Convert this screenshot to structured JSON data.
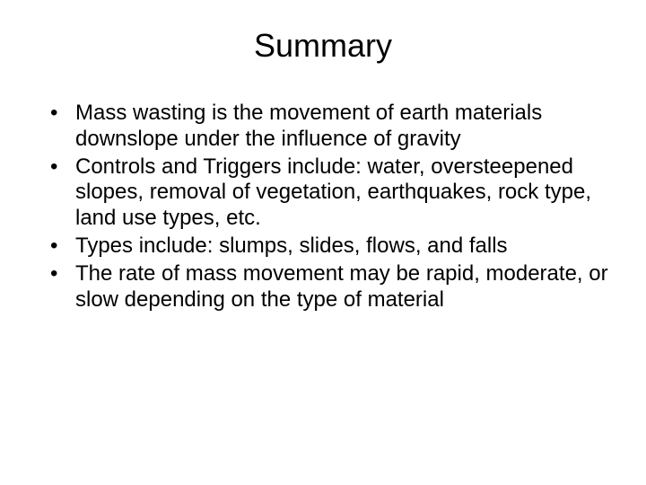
{
  "title": "Summary",
  "bullets": [
    "Mass wasting is the movement of earth materials downslope under the influence of gravity",
    "Controls and Triggers include: water, oversteepened slopes, removal of vegetation, earthquakes, rock type, land use types, etc.",
    "Types include: slumps, slides, flows, and falls",
    "The rate of mass movement may be rapid, moderate, or slow depending on the type of material"
  ],
  "colors": {
    "background": "#ffffff",
    "text": "#000000"
  },
  "typography": {
    "title_fontsize": 36,
    "body_fontsize": 24,
    "font_family": "Arial"
  }
}
